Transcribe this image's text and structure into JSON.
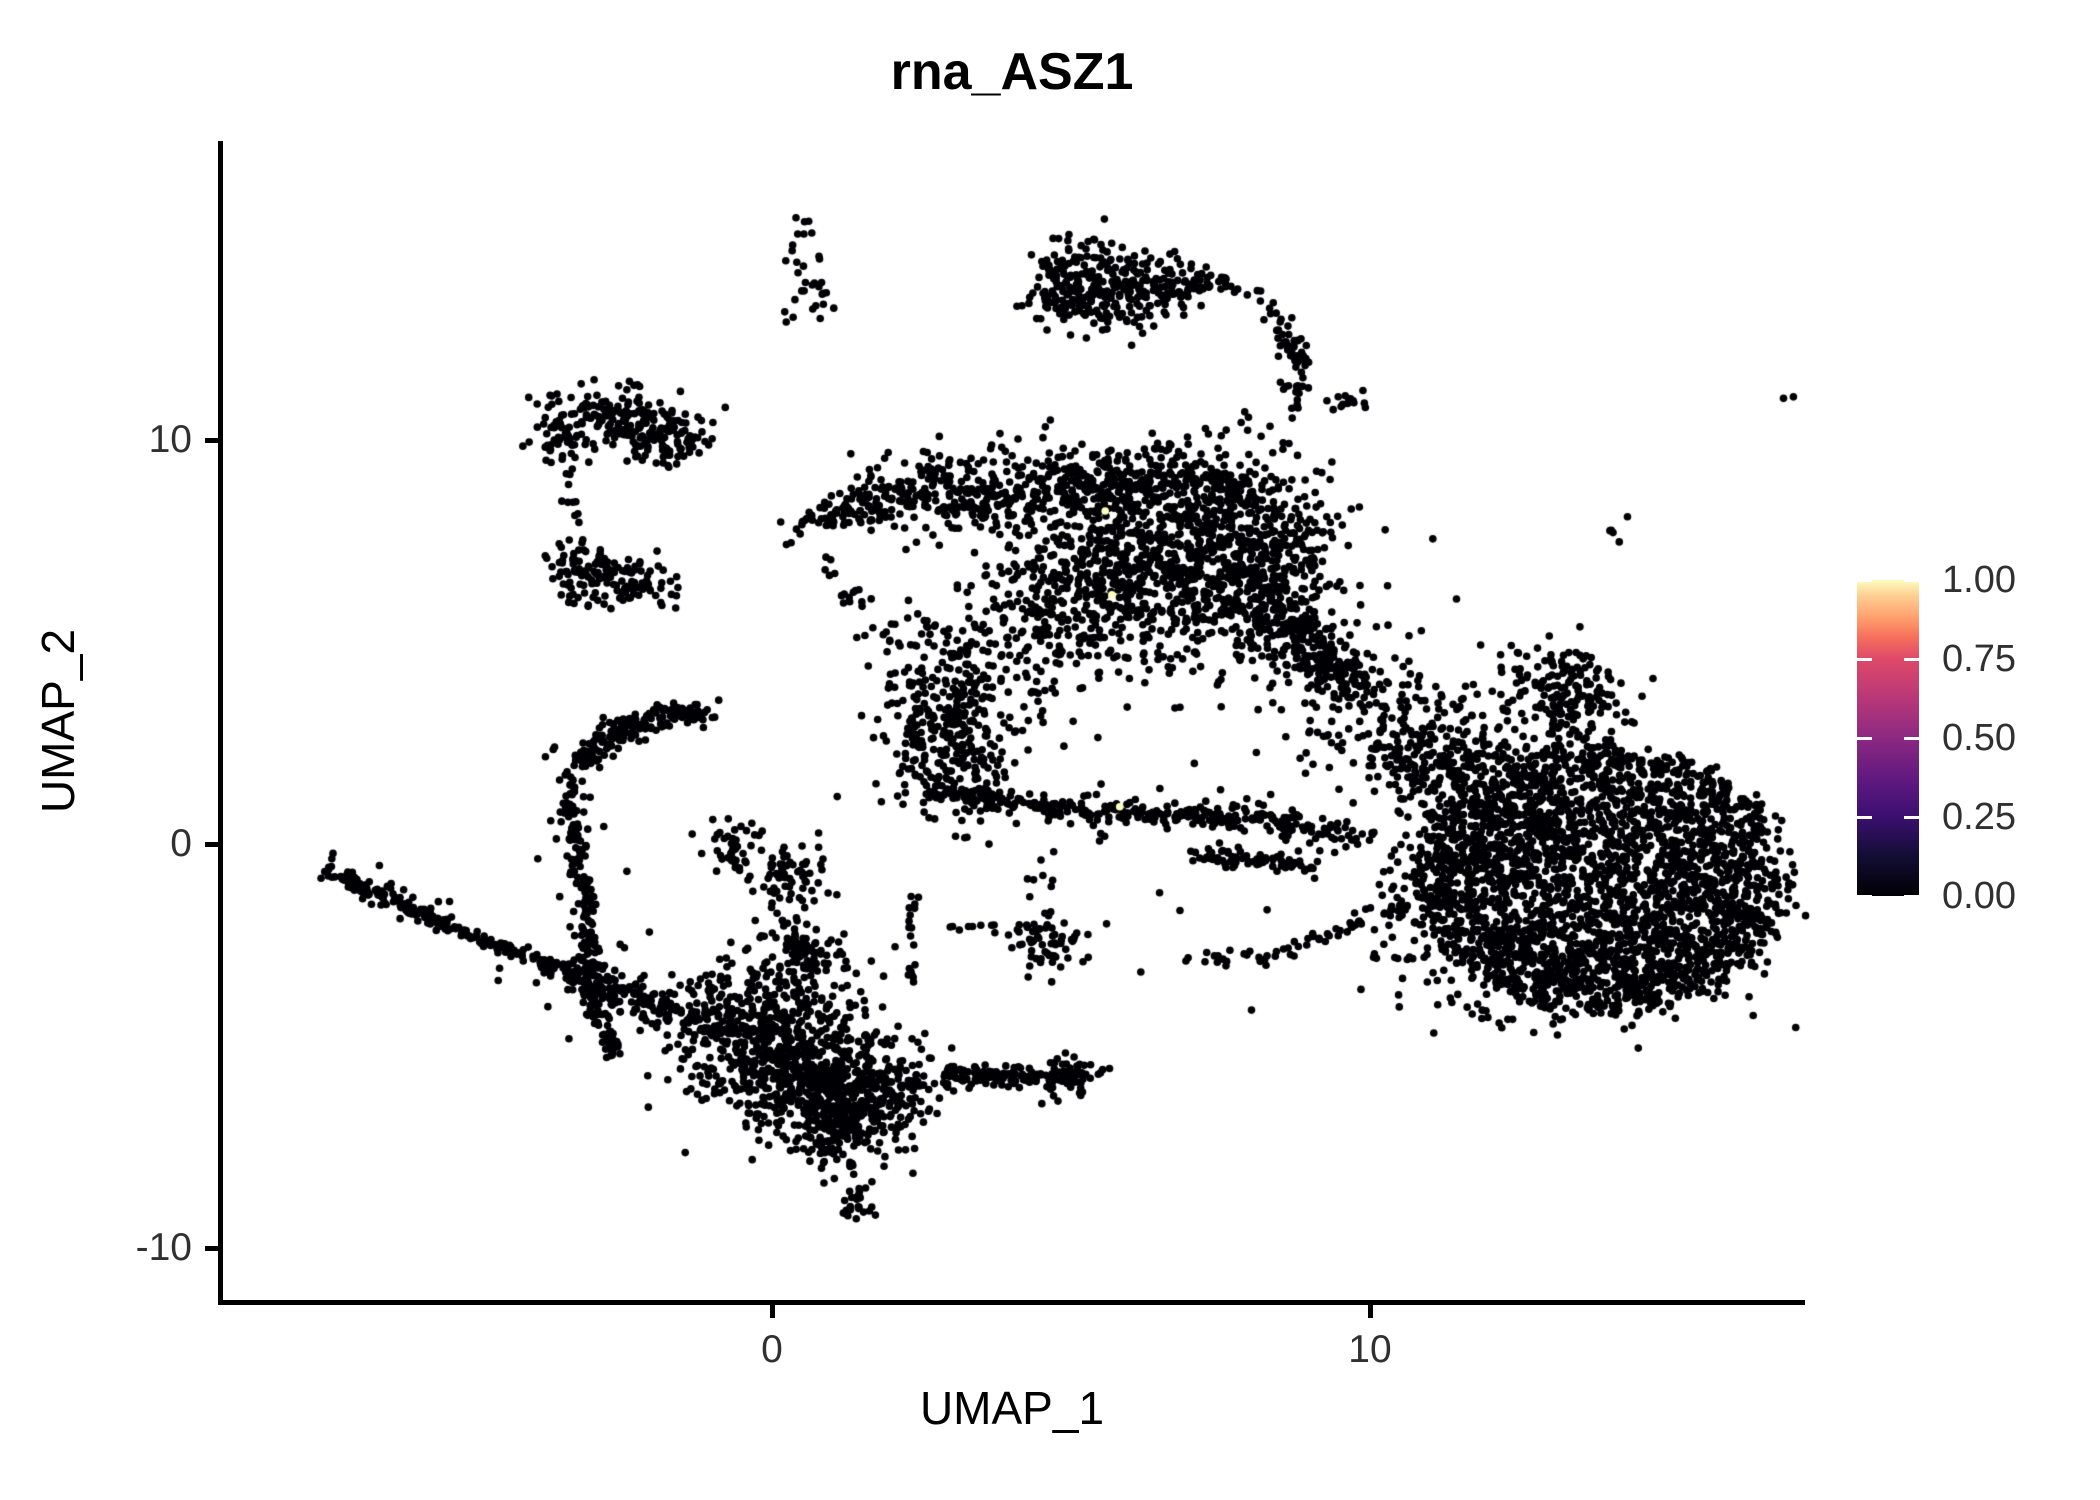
{
  "title": "rna_ASZ1",
  "axes": {
    "x": {
      "label": "UMAP_1",
      "range": [
        -9.2,
        17.2
      ],
      "ticks": [
        {
          "value": 0,
          "label": "0"
        },
        {
          "value": 10,
          "label": "10"
        }
      ]
    },
    "y": {
      "label": "UMAP_2",
      "range": [
        -11.3,
        17.4
      ],
      "ticks": [
        {
          "value": 10,
          "label": "10"
        },
        {
          "value": 0,
          "label": "0"
        },
        {
          "value": -10,
          "label": "-10"
        }
      ]
    }
  },
  "legend": {
    "labels": [
      "1.00",
      "0.75",
      "0.50",
      "0.25",
      "0.00"
    ],
    "tick_values": [
      1.0,
      0.75,
      0.5,
      0.25,
      0.0
    ],
    "colormap": "magma",
    "stops": [
      [
        0.0,
        "#000004"
      ],
      [
        0.13,
        "#140e36"
      ],
      [
        0.25,
        "#3b0f70"
      ],
      [
        0.38,
        "#641a80"
      ],
      [
        0.5,
        "#8c2981"
      ],
      [
        0.62,
        "#b73779"
      ],
      [
        0.75,
        "#de4968"
      ],
      [
        0.82,
        "#f7705c"
      ],
      [
        0.88,
        "#fe9f6d"
      ],
      [
        0.95,
        "#fecf92"
      ],
      [
        1.0,
        "#fcfdbf"
      ]
    ]
  },
  "chart_data": {
    "type": "scatter",
    "title": "rna_ASZ1",
    "xlabel": "UMAP_1",
    "ylabel": "UMAP_2",
    "value_range": [
      0.0,
      1.0
    ],
    "dominant_value": 0.0,
    "point_color_low": "#000004",
    "point_color_high": "#fcfdbf",
    "approx_points": 10000,
    "clusters": [
      {
        "id": "top-small-a",
        "kind": "gauss",
        "n": 14,
        "value": 0,
        "c": [
          0.47,
          14.95
        ],
        "s": [
          0.13,
          0.45
        ]
      },
      {
        "id": "top-small-b",
        "kind": "gauss",
        "n": 16,
        "value": 0,
        "c": [
          0.72,
          13.76
        ],
        "s": [
          0.15,
          0.35
        ]
      },
      {
        "id": "top-small-c",
        "kind": "gauss",
        "n": 3,
        "value": 0,
        "c": [
          0.23,
          13.07
        ],
        "s": [
          0.07,
          0.15
        ]
      },
      {
        "id": "top-mid-1",
        "kind": "gauss",
        "n": 170,
        "value": 0,
        "c": [
          5.07,
          13.91
        ],
        "s": [
          0.43,
          0.54
        ]
      },
      {
        "id": "top-mid-2",
        "kind": "gauss",
        "n": 150,
        "value": 0,
        "c": [
          6.04,
          13.66
        ],
        "s": [
          0.5,
          0.45
        ]
      },
      {
        "id": "top-mid-3",
        "kind": "gauss",
        "n": 45,
        "value": 0,
        "c": [
          6.96,
          13.89
        ],
        "s": [
          0.33,
          0.22
        ]
      },
      {
        "id": "top-trail",
        "kind": "strand",
        "n": 9,
        "value": 0,
        "jitter": 0.07,
        "pts": [
          [
            7.46,
            14.01
          ],
          [
            8.29,
            13.49
          ]
        ]
      },
      {
        "id": "top-chain",
        "kind": "strand",
        "n": 26,
        "value": 0,
        "jitter": 0.1,
        "pts": [
          [
            8.29,
            13.49
          ],
          [
            8.56,
            12.7
          ],
          [
            8.76,
            12.18
          ],
          [
            8.85,
            11.63
          ]
        ]
      },
      {
        "id": "chain-knot",
        "kind": "gauss",
        "n": 22,
        "value": 0,
        "c": [
          8.78,
          12.13
        ],
        "s": [
          0.18,
          0.22
        ]
      },
      {
        "id": "chain-end-1",
        "kind": "gauss",
        "n": 16,
        "value": 0,
        "c": [
          8.76,
          11.11
        ],
        "s": [
          0.15,
          0.2
        ]
      },
      {
        "id": "chain-end-2",
        "kind": "gauss",
        "n": 14,
        "value": 0,
        "c": [
          9.6,
          10.99
        ],
        "s": [
          0.17,
          0.17
        ]
      },
      {
        "id": "left-flag-1",
        "kind": "gauss",
        "n": 70,
        "value": 0,
        "c": [
          -3.55,
          10.2
        ],
        "s": [
          0.27,
          0.45
        ]
      },
      {
        "id": "left-flag-2",
        "kind": "gauss",
        "n": 130,
        "value": 0,
        "c": [
          -2.51,
          10.64
        ],
        "s": [
          0.5,
          0.35
        ]
      },
      {
        "id": "left-flag-3",
        "kind": "gauss",
        "n": 85,
        "value": 0,
        "c": [
          -1.82,
          9.98
        ],
        "s": [
          0.37,
          0.3
        ]
      },
      {
        "id": "left-flag-tip",
        "kind": "gauss",
        "n": 7,
        "value": 0,
        "c": [
          -1.25,
          10.07
        ],
        "s": [
          0.12,
          0.12
        ]
      },
      {
        "id": "left-dribble",
        "kind": "strand",
        "n": 9,
        "value": 0,
        "jitter": 0.1,
        "pts": [
          [
            -3.34,
            9.16
          ],
          [
            -3.14,
            7.62
          ]
        ]
      },
      {
        "id": "left-low-1",
        "kind": "gauss",
        "n": 50,
        "value": 0,
        "c": [
          -3.33,
          6.86
        ],
        "s": [
          0.23,
          0.37
        ]
      },
      {
        "id": "left-low-2",
        "kind": "gauss",
        "n": 95,
        "value": 0,
        "c": [
          -2.46,
          6.51
        ],
        "s": [
          0.43,
          0.35
        ]
      },
      {
        "id": "mid-wedge-tip",
        "kind": "strand",
        "n": 90,
        "value": 0,
        "jitter": 0.22,
        "pts": [
          [
            0.37,
            7.85
          ],
          [
            2.14,
            8.56
          ]
        ]
      },
      {
        "id": "mid-top-band",
        "kind": "strand",
        "n": 550,
        "value": 0,
        "jitter": 0.5,
        "pts": [
          [
            1.97,
            8.6
          ],
          [
            4.82,
            8.9
          ],
          [
            7.66,
            8.85
          ]
        ]
      },
      {
        "id": "mid-core",
        "kind": "gauss",
        "n": 800,
        "value": 0,
        "c": [
          6.49,
          6.91
        ],
        "s": [
          1.34,
          1.11
        ]
      },
      {
        "id": "mid-core-right",
        "kind": "gauss",
        "n": 400,
        "value": 0,
        "c": [
          8.08,
          7.03
        ],
        "s": [
          0.67,
          1.36
        ]
      },
      {
        "id": "mid-right-band",
        "kind": "strand",
        "n": 190,
        "value": 0,
        "jitter": 0.3,
        "pts": [
          [
            8.58,
            5.67
          ],
          [
            9.7,
            3.74
          ]
        ]
      },
      {
        "id": "mid-left-lobe",
        "kind": "gauss",
        "n": 380,
        "value": 0,
        "c": [
          2.98,
          3.02
        ],
        "s": [
          0.57,
          1.24
        ]
      },
      {
        "id": "mid-fill",
        "kind": "gauss",
        "n": 220,
        "value": 0,
        "c": [
          4.9,
          5.67
        ],
        "s": [
          1.0,
          1.19
        ]
      },
      {
        "id": "mid-left-dribble",
        "kind": "strand",
        "n": 22,
        "value": 0,
        "jitter": 0.18,
        "pts": [
          [
            1.0,
            6.98
          ],
          [
            1.81,
            4.75
          ]
        ]
      },
      {
        "id": "arc-long",
        "kind": "strand",
        "n": 300,
        "value": 0,
        "jitter": 0.13,
        "pts": [
          [
            2.68,
            1.36
          ],
          [
            4.35,
            0.92
          ],
          [
            6.19,
            0.77
          ],
          [
            8.03,
            0.64
          ],
          [
            9.87,
            0.1
          ]
        ]
      },
      {
        "id": "arc-long-fringe",
        "kind": "strand",
        "n": 70,
        "value": 0,
        "jitter": 0.38,
        "pts": [
          [
            2.68,
            1.36
          ],
          [
            4.35,
            0.92
          ],
          [
            6.19,
            0.77
          ],
          [
            8.03,
            0.64
          ],
          [
            9.87,
            0.1
          ]
        ]
      },
      {
        "id": "arc-short",
        "kind": "strand",
        "n": 75,
        "value": 0,
        "jitter": 0.11,
        "pts": [
          [
            6.99,
            -0.2
          ],
          [
            9.13,
            -0.62
          ]
        ]
      },
      {
        "id": "diag-connector",
        "kind": "strand",
        "n": 60,
        "value": 0,
        "jitter": 0.11,
        "pts": [
          [
            6.86,
            -2.92
          ],
          [
            8.29,
            -2.82
          ],
          [
            10.54,
            -1.46
          ]
        ]
      },
      {
        "id": "small-vert-strand",
        "kind": "strand",
        "n": 18,
        "value": 0,
        "jitter": 0.06,
        "pts": [
          [
            2.34,
            -1.11
          ],
          [
            2.34,
            -3.51
          ]
        ]
      },
      {
        "id": "small-horiz-strand",
        "kind": "strand",
        "n": 16,
        "value": 0,
        "jitter": 0.05,
        "pts": [
          [
            2.93,
            -2.05
          ],
          [
            4.85,
            -2.05
          ]
        ]
      },
      {
        "id": "small-clump",
        "kind": "gauss",
        "n": 55,
        "value": 0,
        "c": [
          4.63,
          -2.48
        ],
        "s": [
          0.35,
          0.37
        ]
      },
      {
        "id": "small-clump-up",
        "kind": "gauss",
        "n": 7,
        "value": 0,
        "c": [
          4.48,
          -0.94
        ],
        "s": [
          0.2,
          0.3
        ]
      },
      {
        "id": "bowl-sparse",
        "kind": "gauss",
        "n": 190,
        "value": 0,
        "c": [
          10.5,
          3.02
        ],
        "s": [
          0.92,
          1.04
        ]
      },
      {
        "id": "bowl-dense",
        "kind": "gauss",
        "n": 130,
        "value": 0,
        "c": [
          11.09,
          2.03
        ],
        "s": [
          0.5,
          0.62
        ]
      },
      {
        "id": "mid-gap-dots",
        "kind": "gauss",
        "n": 12,
        "value": 0,
        "c": [
          7.99,
          -1.76
        ],
        "s": [
          1.51,
          0.87
        ]
      },
      {
        "id": "right-oval",
        "kind": "ellipse",
        "n": 2400,
        "value": 0,
        "c": [
          13.93,
          -0.84
        ],
        "r": [
          3.09,
          3.27
        ]
      },
      {
        "id": "right-oval-bottom",
        "kind": "gauss",
        "n": 260,
        "value": 0,
        "c": [
          13.76,
          -2.75
        ],
        "s": [
          1.17,
          0.69
        ]
      },
      {
        "id": "right-oval-topleft",
        "kind": "gauss",
        "n": 200,
        "value": 0,
        "c": [
          12.17,
          1.09
        ],
        "s": [
          0.75,
          0.99
        ]
      },
      {
        "id": "right-ear",
        "kind": "gauss",
        "n": 190,
        "value": 0,
        "c": [
          13.26,
          3.64
        ],
        "s": [
          0.55,
          0.67
        ]
      },
      {
        "id": "right-halo-left",
        "kind": "gauss",
        "n": 130,
        "value": 0,
        "c": [
          11.04,
          -1.44
        ],
        "s": [
          0.5,
          1.19
        ]
      },
      {
        "id": "right-tail",
        "kind": "strand",
        "n": 12,
        "value": 0,
        "jitter": 0.14,
        "pts": [
          [
            11.29,
            -3.91
          ],
          [
            12.71,
            -4.53
          ]
        ]
      },
      {
        "id": "right-below-dots",
        "kind": "gauss",
        "n": 7,
        "value": 0,
        "c": [
          13.85,
          -4.36
        ],
        "s": [
          0.67,
          0.25
        ]
      },
      {
        "id": "right-tiny-blob",
        "kind": "gauss",
        "n": 5,
        "value": 0,
        "c": [
          14.03,
          7.75
        ],
        "s": [
          0.1,
          0.15
        ]
      },
      {
        "id": "far-right-speck",
        "kind": "gauss",
        "n": 2,
        "value": 0,
        "c": [
          17.07,
          11.04
        ],
        "s": [
          0.07,
          0.1
        ]
      },
      {
        "id": "hook-top-arc",
        "kind": "strand",
        "n": 180,
        "value": 0,
        "jitter": 0.15,
        "pts": [
          [
            -3.16,
            2.05
          ],
          [
            -2.53,
            2.85
          ],
          [
            -1.69,
            3.24
          ],
          [
            -1.02,
            3.12
          ]
        ]
      },
      {
        "id": "hook-left-arm",
        "kind": "strand",
        "n": 210,
        "value": 0,
        "jitter": 0.09,
        "pts": [
          [
            -3.41,
            1.68
          ],
          [
            -3.26,
            -0.2
          ],
          [
            -3.06,
            -1.93
          ],
          [
            -2.99,
            -4.06
          ],
          [
            -2.59,
            -5.25
          ]
        ]
      },
      {
        "id": "hook-arm-fringe",
        "kind": "strand",
        "n": 45,
        "value": 0,
        "jitter": 0.3,
        "pts": [
          [
            -3.41,
            1.68
          ],
          [
            -3.26,
            -0.2
          ],
          [
            -3.06,
            -1.93
          ],
          [
            -2.99,
            -4.06
          ],
          [
            -2.59,
            -5.25
          ]
        ]
      },
      {
        "id": "hook-small-blob",
        "kind": "gauss",
        "n": 38,
        "value": 0,
        "c": [
          -0.65,
          -0.05
        ],
        "s": [
          0.22,
          0.35
        ]
      },
      {
        "id": "hook-blob-tail",
        "kind": "strand",
        "n": 5,
        "value": 0,
        "jitter": 0.06,
        "pts": [
          [
            -0.59,
            -0.45
          ],
          [
            -0.47,
            -0.89
          ]
        ]
      },
      {
        "id": "twin-blob-up",
        "kind": "gauss",
        "n": 70,
        "value": 0,
        "c": [
          0.27,
          -0.79
        ],
        "s": [
          0.3,
          0.4
        ]
      },
      {
        "id": "twin-blob-down",
        "kind": "gauss",
        "n": 60,
        "value": 0,
        "c": [
          0.4,
          -2.4
        ],
        "s": [
          0.28,
          0.35
        ]
      },
      {
        "id": "stray-dots-left",
        "kind": "gauss",
        "n": 3,
        "value": 0,
        "c": [
          -3.7,
          2.45
        ],
        "s": [
          0.12,
          0.2
        ]
      },
      {
        "id": "tail-thin",
        "kind": "strand",
        "n": 150,
        "value": 0,
        "jitter": 0.08,
        "pts": [
          [
            -7.51,
            -0.59
          ],
          [
            -6.22,
            -1.53
          ],
          [
            -5.03,
            -2.28
          ],
          [
            -3.86,
            -2.95
          ]
        ]
      },
      {
        "id": "tail-fringe",
        "kind": "strand",
        "n": 35,
        "value": 0,
        "jitter": 0.24,
        "pts": [
          [
            -7.51,
            -0.59
          ],
          [
            -6.22,
            -1.53
          ],
          [
            -5.03,
            -2.28
          ],
          [
            -3.86,
            -2.95
          ]
        ]
      },
      {
        "id": "tail-band",
        "kind": "strand",
        "n": 220,
        "value": 0,
        "jitter": 0.2,
        "pts": [
          [
            -3.86,
            -2.95
          ],
          [
            -2.19,
            -3.89
          ],
          [
            -0.85,
            -4.63
          ]
        ]
      },
      {
        "id": "bottom-mass-1",
        "kind": "gauss",
        "n": 520,
        "value": 0,
        "c": [
          0.13,
          -5.3
        ],
        "s": [
          0.75,
          0.82
        ]
      },
      {
        "id": "bottom-mass-2",
        "kind": "gauss",
        "n": 400,
        "value": 0,
        "c": [
          1.51,
          -6.14
        ],
        "s": [
          0.6,
          0.74
        ]
      },
      {
        "id": "bottom-tip",
        "kind": "gauss",
        "n": 85,
        "value": 0,
        "c": [
          1.07,
          -7.15
        ],
        "s": [
          0.3,
          0.37
        ]
      },
      {
        "id": "bottom-fringe",
        "kind": "gauss",
        "n": 160,
        "value": 0,
        "c": [
          -0.37,
          -3.91
        ],
        "s": [
          0.8,
          0.59
        ]
      },
      {
        "id": "bottom-right-arm",
        "kind": "strand",
        "n": 130,
        "value": 0,
        "jitter": 0.12,
        "pts": [
          [
            2.83,
            -5.67
          ],
          [
            4.5,
            -5.82
          ],
          [
            5.2,
            -5.67
          ]
        ]
      },
      {
        "id": "bottom-arm-end",
        "kind": "gauss",
        "n": 45,
        "value": 0,
        "c": [
          4.85,
          -5.72
        ],
        "s": [
          0.25,
          0.3
        ]
      },
      {
        "id": "bottom-sparse-above",
        "kind": "gauss",
        "n": 55,
        "value": 0,
        "c": [
          0.47,
          -3.17
        ],
        "s": [
          0.92,
          0.45
        ]
      },
      {
        "id": "drip-dots",
        "kind": "strand",
        "n": 3,
        "value": 0,
        "jitter": 0.05,
        "pts": [
          [
            1.32,
            -7.77
          ],
          [
            1.34,
            -8.19
          ]
        ]
      },
      {
        "id": "drip-blob",
        "kind": "gauss",
        "n": 26,
        "value": 0,
        "c": [
          1.44,
          -8.79
        ],
        "s": [
          0.18,
          0.32
        ]
      },
      {
        "id": "high-expr-1",
        "kind": "gauss",
        "n": 1,
        "value": 1,
        "c": [
          5.57,
          8.24
        ],
        "s": [
          0.01,
          0.01
        ]
      },
      {
        "id": "high-expr-2",
        "kind": "gauss",
        "n": 1,
        "value": 1,
        "c": [
          5.69,
          6.16
        ],
        "s": [
          0.01,
          0.01
        ]
      },
      {
        "id": "high-expr-3",
        "kind": "gauss",
        "n": 1,
        "value": 1,
        "c": [
          5.82,
          0.92
        ],
        "s": [
          0.01,
          0.01
        ]
      }
    ]
  }
}
